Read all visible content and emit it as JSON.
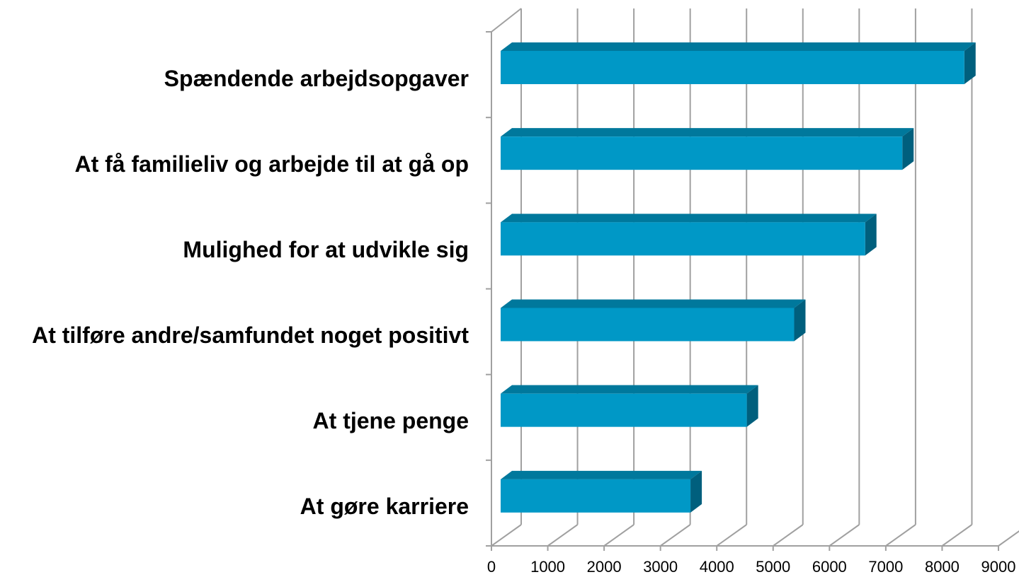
{
  "chart_data": {
    "type": "bar3d_horizontal",
    "categories": [
      "Spændende arbejdsopgaver",
      "At få familieliv og arbejde til at gå op",
      "Mulighed for at udvikle sig",
      "At tilføre andre/samfundet noget positivt",
      "At tjene penge",
      "At gøre karriere"
    ],
    "values": [
      8230,
      7130,
      6470,
      5210,
      4370,
      3370
    ],
    "color": "#0098c6",
    "xlim": [
      0,
      9000
    ],
    "xticks": [
      0,
      1000,
      2000,
      3000,
      4000,
      5000,
      6000,
      7000,
      8000,
      9000
    ],
    "grid": true
  }
}
